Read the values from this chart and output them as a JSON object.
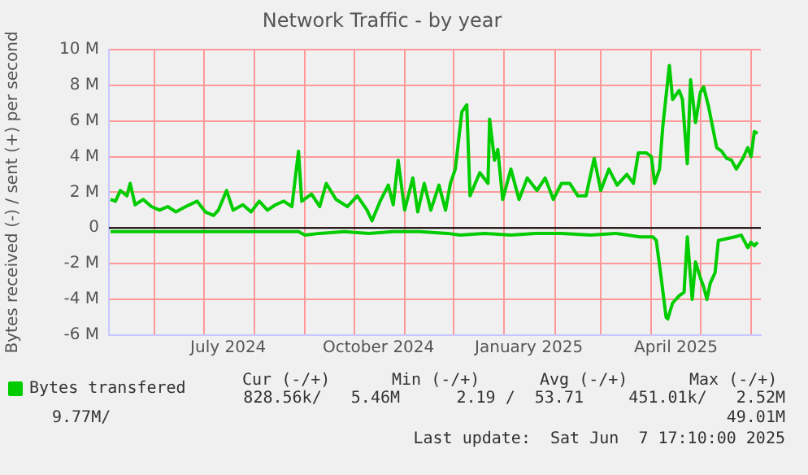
{
  "chart_data": {
    "type": "line",
    "title": "Network Traffic - by year",
    "ylabel": "Bytes received (-) / sent (+) per second",
    "xlim": [
      "2024-05-04",
      "2025-06-07"
    ],
    "xticks": [
      {
        "value": "2024-06-01",
        "label": null
      },
      {
        "value": "2024-07-01",
        "label": null
      },
      {
        "value": "2024-07-16",
        "label": "July 2024"
      },
      {
        "value": "2024-08-01",
        "label": null
      },
      {
        "value": "2024-09-01",
        "label": null
      },
      {
        "value": "2024-10-01",
        "label": null
      },
      {
        "value": "2024-10-16",
        "label": "October 2024"
      },
      {
        "value": "2024-11-01",
        "label": null
      },
      {
        "value": "2024-12-01",
        "label": null
      },
      {
        "value": "2025-01-01",
        "label": null
      },
      {
        "value": "2025-01-16",
        "label": "January 2025"
      },
      {
        "value": "2025-02-01",
        "label": null
      },
      {
        "value": "2025-03-01",
        "label": null
      },
      {
        "value": "2025-04-01",
        "label": null
      },
      {
        "value": "2025-04-16",
        "label": "April 2025"
      },
      {
        "value": "2025-05-01",
        "label": null
      },
      {
        "value": "2025-06-01",
        "label": null
      }
    ],
    "ylim": [
      -6,
      10
    ],
    "yticks": [
      {
        "value": -6,
        "label": "-6 M"
      },
      {
        "value": -4,
        "label": "-4 M"
      },
      {
        "value": -2,
        "label": "-2 M"
      },
      0,
      {
        "value": 2,
        "label": "2 M"
      },
      {
        "value": 4,
        "label": "4 M"
      },
      {
        "value": 6,
        "label": "6 M"
      },
      {
        "value": 8,
        "label": "8 M"
      },
      {
        "value": 10,
        "label": "10 M"
      }
    ],
    "grid": true,
    "legend": "bottom",
    "marker": "none",
    "line_style": "solid",
    "ref_lines": [
      {
        "axis": "y",
        "value": 0,
        "color": "#000000"
      }
    ],
    "annotations": [
      "Cur (-/+)",
      "Min (-/+)",
      "Avg (-/+)",
      "Max (-/+)",
      "828.56k/   5.46M",
      "2.19 /  53.71",
      "451.01k/   2.52M",
      "9.77M/",
      "49.01M",
      "Last update:  Sat Jun  7 17:10:00 2025"
    ],
    "series": [
      {
        "name": "Bytes transfered",
        "color": "#00cc00",
        "x": [
          "2024-05-05",
          "2024-05-08",
          "2024-05-11",
          "2024-05-15",
          "2024-05-17",
          "2024-05-20",
          "2024-05-25",
          "2024-05-30",
          "2024-06-04",
          "2024-06-09",
          "2024-06-14",
          "2024-06-20",
          "2024-06-27",
          "2024-07-02",
          "2024-07-07",
          "2024-07-10",
          "2024-07-15",
          "2024-07-19",
          "2024-07-25",
          "2024-07-30",
          "2024-08-04",
          "2024-08-09",
          "2024-08-14",
          "2024-08-19",
          "2024-08-24",
          "2024-08-28",
          "2024-08-30",
          "2024-09-05",
          "2024-09-10",
          "2024-09-14",
          "2024-09-20",
          "2024-09-27",
          "2024-10-03",
          "2024-10-09",
          "2024-10-12",
          "2024-10-17",
          "2024-10-22",
          "2024-10-25",
          "2024-10-28",
          "2024-11-01",
          "2024-11-06",
          "2024-11-09",
          "2024-11-13",
          "2024-11-17",
          "2024-11-22",
          "2024-11-26",
          "2024-11-29",
          "2024-12-02",
          "2024-12-06",
          "2024-12-09",
          "2024-12-11",
          "2024-12-17",
          "2024-12-22",
          "2024-12-23",
          "2024-12-26",
          "2024-12-28",
          "2024-12-31",
          "2025-01-05",
          "2025-01-10",
          "2025-01-15",
          "2025-01-21",
          "2025-01-26",
          "2025-01-31",
          "2025-02-05",
          "2025-02-10",
          "2025-02-15",
          "2025-02-20",
          "2025-02-25",
          "2025-03-01",
          "2025-03-06",
          "2025-03-11",
          "2025-03-17",
          "2025-03-21",
          "2025-03-24",
          "2025-03-29",
          "2025-04-01",
          "2025-04-03",
          "2025-04-06",
          "2025-04-08",
          "2025-04-12",
          "2025-04-14",
          "2025-04-18",
          "2025-04-20",
          "2025-04-23",
          "2025-04-25",
          "2025-04-28",
          "2025-05-01",
          "2025-05-03",
          "2025-05-06",
          "2025-05-11",
          "2025-05-14",
          "2025-05-17",
          "2025-05-20",
          "2025-05-23",
          "2025-05-27",
          "2025-05-30",
          "2025-06-01",
          "2025-06-03",
          "2025-06-05"
        ],
        "values": [
          1.6,
          1.5,
          2.1,
          1.8,
          2.5,
          1.3,
          1.6,
          1.2,
          1.0,
          1.2,
          0.9,
          1.2,
          1.5,
          0.9,
          0.7,
          1.0,
          2.1,
          1.0,
          1.3,
          0.9,
          1.5,
          1.0,
          1.3,
          1.5,
          1.2,
          4.3,
          1.5,
          1.9,
          1.2,
          2.5,
          1.6,
          1.2,
          1.8,
          1.0,
          0.4,
          1.5,
          2.4,
          1.3,
          3.8,
          1.0,
          2.8,
          0.9,
          2.5,
          1.0,
          2.4,
          1.0,
          2.5,
          3.3,
          6.5,
          6.9,
          1.8,
          3.1,
          2.5,
          6.1,
          3.8,
          4.4,
          1.6,
          3.3,
          1.6,
          2.8,
          2.1,
          2.8,
          1.6,
          2.5,
          2.5,
          1.8,
          1.8,
          3.9,
          2.1,
          3.3,
          2.4,
          3.0,
          2.5,
          4.2,
          4.2,
          4.0,
          2.5,
          3.3,
          5.7,
          9.1,
          7.2,
          7.7,
          7.2,
          3.6,
          8.3,
          5.9,
          7.6,
          7.9,
          6.8,
          4.5,
          4.3,
          3.9,
          3.8,
          3.3,
          3.9,
          4.5,
          4.0,
          5.4,
          5.3
        ]
      },
      {
        "color": "#00cc00",
        "x": [
          "2024-05-05",
          "2024-05-25",
          "2024-06-15",
          "2024-07-05",
          "2024-07-25",
          "2024-08-15",
          "2024-08-28",
          "2024-09-01",
          "2024-09-10",
          "2024-09-25",
          "2024-10-10",
          "2024-10-25",
          "2024-11-10",
          "2024-11-27",
          "2024-12-05",
          "2024-12-20",
          "2025-01-05",
          "2025-01-20",
          "2025-02-05",
          "2025-02-23",
          "2025-03-10",
          "2025-03-25",
          "2025-04-02",
          "2025-04-04",
          "2025-04-07",
          "2025-04-10",
          "2025-04-11",
          "2025-04-14",
          "2025-04-18",
          "2025-04-21",
          "2025-04-23",
          "2025-04-26",
          "2025-04-28",
          "2025-05-01",
          "2025-05-03",
          "2025-05-05",
          "2025-05-07",
          "2025-05-10",
          "2025-05-12",
          "2025-05-17",
          "2025-05-22",
          "2025-05-26",
          "2025-05-30",
          "2025-06-01",
          "2025-06-03",
          "2025-06-05"
        ],
        "values": [
          -0.2,
          -0.2,
          -0.2,
          -0.2,
          -0.2,
          -0.2,
          -0.2,
          -0.4,
          -0.3,
          -0.2,
          -0.3,
          -0.2,
          -0.2,
          -0.3,
          -0.4,
          -0.3,
          -0.4,
          -0.3,
          -0.3,
          -0.4,
          -0.3,
          -0.5,
          -0.5,
          -0.7,
          -2.8,
          -5.0,
          -5.1,
          -4.2,
          -3.8,
          -3.6,
          -0.5,
          -4.0,
          -1.9,
          -2.8,
          -3.3,
          -4.0,
          -3.1,
          -2.5,
          -0.7,
          -0.6,
          -0.5,
          -0.4,
          -1.1,
          -0.8,
          -1.0,
          -0.8
        ]
      }
    ]
  }
}
